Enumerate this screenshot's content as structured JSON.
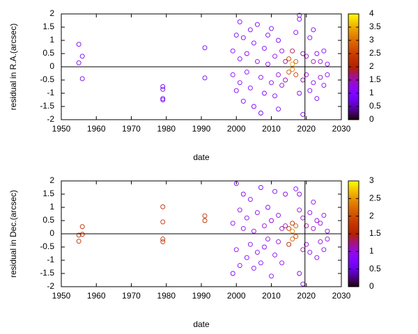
{
  "chart_data": [
    {
      "type": "scatter",
      "x_label": "date",
      "y_label": "residual in R.A.(arcsec)",
      "xlim": [
        1950,
        2030
      ],
      "xticks": [
        1950,
        1960,
        1970,
        1980,
        1990,
        2000,
        2010,
        2020,
        2030
      ],
      "ylim": [
        -2,
        2
      ],
      "yticks": [
        -2,
        -1.5,
        -1,
        -0.5,
        0,
        0.5,
        1,
        1.5,
        2
      ],
      "reference_lines": {
        "y": 0,
        "x": 2019.6
      },
      "colorbar": {
        "lim": [
          0,
          4
        ],
        "ticks": [
          0,
          0.5,
          1,
          1.5,
          2,
          2.5,
          3,
          3.5,
          4
        ]
      },
      "x": [
        1955,
        1955,
        1956,
        1956,
        1979,
        1979,
        1979,
        1979,
        1991,
        1991,
        1999,
        1999,
        2000,
        2000,
        2001,
        2001,
        2001,
        2002,
        2002,
        2003,
        2003,
        2004,
        2004,
        2005,
        2005,
        2006,
        2006,
        2007,
        2007,
        2008,
        2008,
        2009,
        2009,
        2010,
        2010,
        2011,
        2011,
        2012,
        2012,
        2012,
        2013,
        2013,
        2014,
        2014,
        2015,
        2015,
        2016,
        2016,
        2016,
        2017,
        2017,
        2017,
        2018,
        2018,
        2018,
        2019,
        2019,
        2019,
        2020,
        2020,
        2021,
        2021,
        2022,
        2022,
        2022,
        2023,
        2023,
        2024,
        2024,
        2025,
        2025,
        2026,
        2026
      ],
      "values": [
        0.85,
        0.15,
        0.4,
        -0.45,
        -0.75,
        -0.85,
        -1.2,
        -1.25,
        0.72,
        -0.42,
        0.6,
        -0.3,
        1.2,
        -0.9,
        1.7,
        0.3,
        -0.6,
        1.1,
        -1.3,
        0.5,
        -0.2,
        1.4,
        -0.8,
        0.9,
        -1.5,
        0.2,
        1.6,
        -0.4,
        -1.75,
        0.7,
        -1.0,
        1.2,
        0.1,
        -0.6,
        1.45,
        0.4,
        -1.1,
        1.0,
        -0.3,
        -1.6,
        0.6,
        -0.7,
        0.2,
        -0.5,
        0.3,
        -0.2,
        0.1,
        -0.1,
        0.6,
        0.2,
        -0.3,
        1.3,
        1.8,
        -1.0,
        1.95,
        -1.8,
        0.5,
        -0.5,
        0.4,
        -0.3,
        1.1,
        -0.9,
        0.2,
        1.4,
        -0.6,
        0.5,
        -1.2,
        0.2,
        -0.4,
        0.6,
        -0.7,
        0.1,
        -0.3
      ],
      "color_values": [
        0.8,
        0.8,
        0.8,
        0.8,
        0.8,
        0.8,
        0.8,
        0.8,
        0.8,
        0.8,
        1.0,
        1.1,
        0.9,
        1.0,
        0.9,
        1.2,
        1.1,
        0.9,
        0.9,
        1.2,
        1.2,
        0.9,
        1.0,
        1.0,
        0.9,
        1.2,
        0.9,
        1.1,
        0.8,
        1.0,
        1.0,
        0.9,
        1.2,
        1.1,
        0.9,
        1.2,
        1.0,
        1.0,
        1.3,
        0.9,
        1.3,
        1.2,
        1.6,
        1.5,
        2.4,
        2.6,
        3.4,
        3.2,
        1.8,
        2.8,
        2.5,
        1.2,
        1.0,
        1.1,
        1.0,
        0.9,
        1.5,
        1.5,
        1.4,
        1.4,
        1.0,
        1.0,
        1.5,
        1.0,
        1.2,
        1.2,
        1.0,
        1.4,
        1.3,
        1.1,
        1.1,
        1.2,
        1.2
      ]
    },
    {
      "type": "scatter",
      "x_label": "date",
      "y_label": "residual in Dec.(arcsec)",
      "xlim": [
        1950,
        2030
      ],
      "xticks": [
        1950,
        1960,
        1970,
        1980,
        1990,
        2000,
        2010,
        2020,
        2030
      ],
      "ylim": [
        -2,
        2
      ],
      "yticks": [
        -2,
        -1.5,
        -1,
        -0.5,
        0,
        0.5,
        1,
        1.5,
        2
      ],
      "reference_lines": {
        "y": 0,
        "x": 2019.6
      },
      "colorbar": {
        "lim": [
          0,
          3
        ],
        "ticks": [
          0,
          0.5,
          1,
          1.5,
          2,
          2.5,
          3
        ]
      },
      "x": [
        1955,
        1955,
        1956,
        1956,
        1979,
        1979,
        1979,
        1979,
        1991,
        1991,
        1999,
        1999,
        2000,
        2000,
        2001,
        2001,
        2002,
        2002,
        2003,
        2003,
        2004,
        2004,
        2005,
        2005,
        2006,
        2006,
        2007,
        2007,
        2008,
        2008,
        2009,
        2009,
        2010,
        2010,
        2011,
        2011,
        2012,
        2012,
        2013,
        2013,
        2014,
        2014,
        2015,
        2015,
        2016,
        2016,
        2016,
        2017,
        2017,
        2017,
        2018,
        2018,
        2018,
        2019,
        2019,
        2019,
        2020,
        2020,
        2021,
        2021,
        2022,
        2022,
        2023,
        2023,
        2024,
        2024,
        2025,
        2025,
        2026,
        2026
      ],
      "values": [
        -0.05,
        -0.28,
        0.27,
        -0.02,
        1.02,
        0.45,
        -0.2,
        -0.3,
        0.68,
        0.5,
        -1.5,
        0.4,
        1.9,
        -0.6,
        0.9,
        -1.2,
        1.5,
        0.2,
        -0.9,
        0.6,
        1.3,
        -0.4,
        0.1,
        -1.3,
        0.8,
        -0.7,
        1.75,
        -1.1,
        0.3,
        -0.5,
        1.0,
        -0.2,
        0.5,
        -1.6,
        1.6,
        -0.8,
        0.7,
        -0.3,
        0.2,
        -1.1,
        1.5,
        0.3,
        -0.4,
        0.2,
        0.1,
        -0.2,
        0.4,
        0.3,
        -0.1,
        1.7,
        1.5,
        -1.5,
        0.9,
        -1.9,
        0.6,
        -0.6,
        0.3,
        -0.4,
        0.8,
        -0.7,
        0.2,
        1.2,
        -0.9,
        0.5,
        -0.3,
        0.4,
        0.7,
        -0.6,
        0.1,
        -0.2
      ],
      "color_values": [
        1.7,
        1.7,
        1.7,
        1.7,
        1.7,
        1.7,
        1.7,
        1.7,
        1.7,
        1.7,
        0.8,
        0.9,
        0.8,
        0.9,
        0.9,
        0.8,
        0.8,
        0.9,
        0.8,
        0.9,
        0.8,
        0.9,
        1.0,
        0.8,
        0.9,
        0.9,
        0.8,
        0.8,
        1.0,
        0.9,
        0.8,
        1.0,
        1.0,
        0.8,
        0.8,
        0.9,
        0.9,
        1.0,
        1.1,
        0.9,
        0.8,
        1.1,
        1.5,
        1.8,
        2.4,
        2.2,
        1.6,
        2.1,
        2.0,
        0.8,
        0.9,
        0.8,
        1.0,
        0.8,
        1.1,
        1.1,
        1.2,
        1.1,
        0.9,
        0.9,
        1.1,
        0.9,
        0.9,
        1.0,
        1.0,
        1.0,
        0.9,
        0.9,
        1.0,
        1.0
      ]
    }
  ]
}
